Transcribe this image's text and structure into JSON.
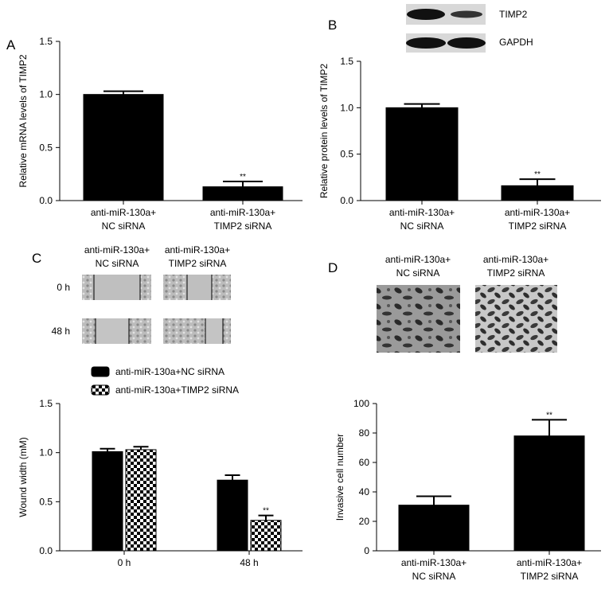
{
  "chart_data": [
    {
      "type": "bar",
      "panel_label": "A",
      "ylabel": "Relative mRNA levels of TIMP2",
      "categories": [
        "anti-miR-130a+\nNC siRNA",
        "anti-miR-130a+\nTIMP2 siRNA"
      ],
      "values": [
        1.0,
        0.13
      ],
      "errors": [
        0.03,
        0.05
      ],
      "value_annotations": [
        null,
        "**"
      ],
      "color": "#000000",
      "ylim": [
        0,
        1.5
      ],
      "yticks": [
        {
          "value": 0,
          "label": "0.0"
        },
        0.5,
        {
          "value": 1,
          "label": "1.0"
        },
        1.5
      ]
    },
    {
      "type": "bar",
      "panel_label": "B",
      "ylabel": "Relative protein levels of TIMP2",
      "blot_labels": [
        "TIMP2",
        "GAPDH"
      ],
      "categories": [
        "anti-miR-130a+\nNC siRNA",
        "anti-miR-130a+\nTIMP2 siRNA"
      ],
      "values": [
        1.0,
        0.16
      ],
      "errors": [
        0.04,
        0.07
      ],
      "value_annotations": [
        null,
        "**"
      ],
      "color": "#000000",
      "ylim": [
        0,
        1.5
      ],
      "yticks": [
        {
          "value": 0,
          "label": "0.0"
        },
        0.5,
        {
          "value": 1,
          "label": "1.0"
        },
        1.5
      ]
    },
    {
      "type": "grouped-bar",
      "panel_label": "C",
      "ylabel": "Wound width (mM)",
      "images": {
        "columns": [
          "anti-miR-130a+\nNC siRNA",
          "anti-miR-130a+\nTIMP2 siRNA"
        ],
        "rows": [
          "0 h",
          "48 h"
        ]
      },
      "categories": [
        "0 h",
        "48 h"
      ],
      "legend_position": "top",
      "series": [
        {
          "name": "anti-miR-130a+NC siRNA",
          "color": "#000000",
          "pattern": "solid",
          "values": [
            1.01,
            0.72
          ],
          "errors": [
            0.03,
            0.05
          ],
          "value_annotations": [
            null,
            null
          ]
        },
        {
          "name": "anti-miR-130a+TIMP2 siRNA",
          "color": "#000000",
          "pattern": "checker",
          "values": [
            1.03,
            0.31
          ],
          "errors": [
            0.03,
            0.05
          ],
          "value_annotations": [
            null,
            "**"
          ]
        }
      ],
      "ylim": [
        0,
        1.5
      ],
      "yticks": [
        {
          "value": 0,
          "label": "0.0"
        },
        0.5,
        {
          "value": 1,
          "label": "1.0"
        },
        1.5
      ]
    },
    {
      "type": "bar",
      "panel_label": "D",
      "ylabel": "Invasive cell number",
      "images": {
        "columns": [
          "anti-miR-130a+\nNC siRNA",
          "anti-miR-130a+\nTIMP2 siRNA"
        ]
      },
      "categories": [
        "anti-miR-130a+\nNC siRNA",
        "anti-miR-130a+\nTIMP2 siRNA"
      ],
      "values": [
        31,
        78
      ],
      "errors": [
        6,
        11
      ],
      "value_annotations": [
        null,
        "**"
      ],
      "color": "#000000",
      "ylim": [
        0,
        100
      ],
      "yticks": [
        0,
        20,
        40,
        60,
        80,
        100
      ]
    }
  ]
}
